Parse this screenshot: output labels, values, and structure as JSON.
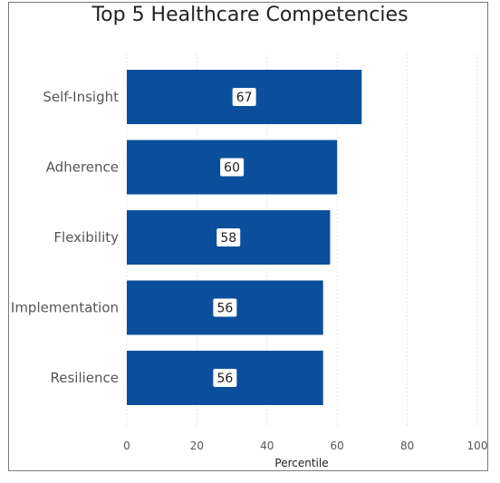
{
  "chart_data": {
    "type": "bar",
    "orientation": "horizontal",
    "title": "Top 5 Healthcare Competencies",
    "xlabel": "Percentile",
    "ylabel": "",
    "categories": [
      "Self-Insight",
      "Adherence",
      "Flexibility",
      "Implementation",
      "Resilience"
    ],
    "values": [
      67,
      60,
      58,
      56,
      56
    ],
    "xlim": [
      0,
      100
    ],
    "xticks": [
      0,
      20,
      40,
      60,
      80,
      100
    ],
    "grid": "vertical-dotted",
    "bar_color": "#0b4f9c",
    "data_labels": true
  }
}
